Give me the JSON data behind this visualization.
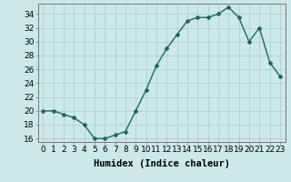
{
  "xlabel": "Humidex (Indice chaleur)",
  "x": [
    0,
    1,
    2,
    3,
    4,
    5,
    6,
    7,
    8,
    9,
    10,
    11,
    12,
    13,
    14,
    15,
    16,
    17,
    18,
    19,
    20,
    21,
    22,
    23
  ],
  "y": [
    20,
    20,
    19.5,
    19,
    18,
    16,
    16,
    16.5,
    17,
    20,
    23,
    26.5,
    29,
    31,
    33,
    33.5,
    33.5,
    34,
    35,
    33.5,
    30,
    32,
    27,
    25
  ],
  "line_color": "#1a6b5a",
  "marker": "D",
  "marker_size": 2.0,
  "bg_color": "#cce8e8",
  "grid_color": "#aacccc",
  "ylim": [
    15.5,
    35.5
  ],
  "yticks": [
    16,
    18,
    20,
    22,
    24,
    26,
    28,
    30,
    32,
    34
  ],
  "xtick_labels": [
    "0",
    "1",
    "2",
    "3",
    "4",
    "5",
    "6",
    "7",
    "8",
    "9",
    "10",
    "11",
    "12",
    "13",
    "14",
    "15",
    "16",
    "17",
    "18",
    "19",
    "20",
    "21",
    "22",
    "23"
  ],
  "xlabel_fontsize": 7.5,
  "tick_fontsize": 6.5,
  "linewidth": 1.0
}
